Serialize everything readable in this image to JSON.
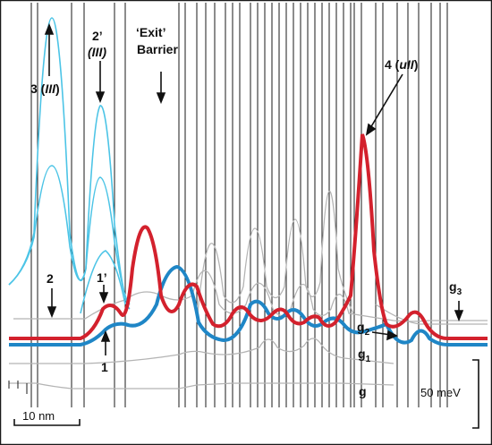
{
  "labels": {
    "peak_3": "3 (",
    "peak_3_roman": "III",
    "peak_3_close": ")",
    "peak_2prime": "2’",
    "peak_2prime_roman": "(III)",
    "exit_quote": "‘Exit’",
    "exit_barrier": "Barrier",
    "peak_4": "4 (",
    "peak_4_roman": "uII",
    "peak_4_close": ")",
    "state_2": "2",
    "state_1prime": "1’",
    "state_1": "1",
    "g": "g",
    "g1_base": "g",
    "g1_sub": "1",
    "g2_base": "g",
    "g2_sub": "2",
    "g3_base": "g",
    "g3_sub": "3",
    "scale_x": "10 nm",
    "scale_y": "50 meV"
  },
  "colors": {
    "red_curve": "#d3212d",
    "blue_curve": "#1f86c6",
    "cyan_curve": "#4cc4e6",
    "gray_curve": "#b4b4b4",
    "barrier_line": "#1a1a1a",
    "border": "#1a1a1a"
  }
}
